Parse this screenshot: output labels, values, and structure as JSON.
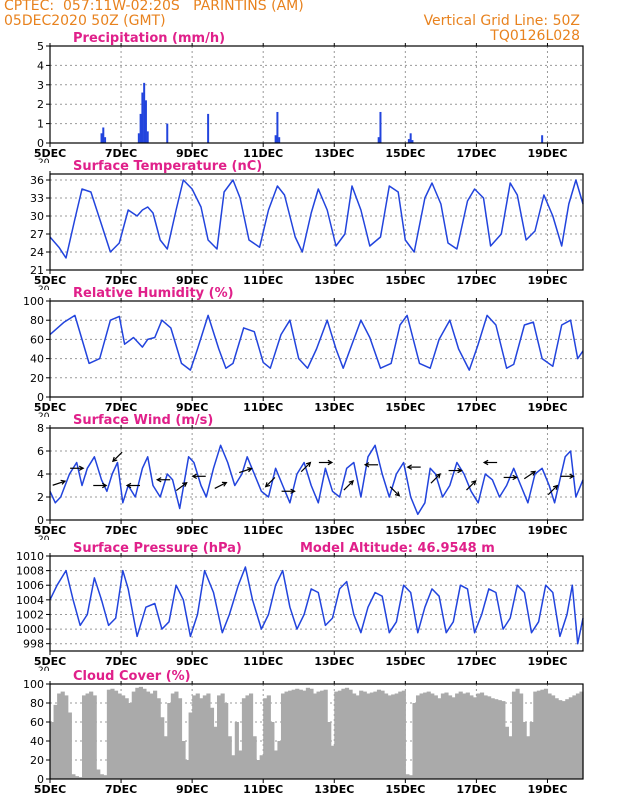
{
  "header": {
    "line1": "CPTEC:  057:11W-02:20S   PARINTINS (AM)",
    "line2": "05DEC2020 50Z (GMT)",
    "grid_note": "Vertical Grid Line: 50Z",
    "model_id": "TQ0126L028"
  },
  "colors": {
    "header": "#e8821e",
    "title": "#e0208a",
    "series": "#2244dd",
    "cloud": "#aaaaaa",
    "arrow": "#000000"
  },
  "chart_data": [
    {
      "id": "precip",
      "type": "bar",
      "title": "Precipitation (mm/h)",
      "ylim": [
        0,
        5
      ],
      "yticks": [
        0,
        1,
        2,
        3,
        4,
        5
      ],
      "xlim": [
        5,
        20
      ],
      "xticks": [
        5,
        7,
        9,
        11,
        13,
        15,
        17,
        19
      ],
      "xtick_labels": [
        "5DEC",
        "7DEC",
        "9DEC",
        "11DEC",
        "13DEC",
        "15DEC",
        "17DEC",
        "19DEC"
      ],
      "cut_label": "20",
      "grid": true,
      "x": [
        6.45,
        6.5,
        6.55,
        7.5,
        7.55,
        7.6,
        7.65,
        7.7,
        7.75,
        8.3,
        9.45,
        11.35,
        11.4,
        11.45,
        14.25,
        14.3,
        15.1,
        15.15,
        15.2,
        18.85
      ],
      "values": [
        0.5,
        0.8,
        0.3,
        0.5,
        1.5,
        2.6,
        3.1,
        2.2,
        0.6,
        1.0,
        1.5,
        0.4,
        1.6,
        0.3,
        0.3,
        1.6,
        0.2,
        0.5,
        0.15,
        0.4
      ]
    },
    {
      "id": "temp",
      "type": "line",
      "title": "Surface Temperature (nC)",
      "ylim": [
        21,
        37
      ],
      "yticks": [
        21,
        24,
        27,
        30,
        33,
        36
      ],
      "xlim": [
        5,
        20
      ],
      "xticks": [
        5,
        7,
        9,
        11,
        13,
        15,
        17,
        19
      ],
      "xtick_labels": [
        "5DEC",
        "7DEC",
        "9DEC",
        "11DEC",
        "13DEC",
        "15DEC",
        "17DEC",
        "19DEC"
      ],
      "cut_label": "20",
      "grid": true,
      "x": [
        5.0,
        5.25,
        5.45,
        5.7,
        5.9,
        6.15,
        6.4,
        6.7,
        6.95,
        7.2,
        7.45,
        7.6,
        7.75,
        7.9,
        8.1,
        8.3,
        8.55,
        8.75,
        9.0,
        9.25,
        9.45,
        9.7,
        9.9,
        10.15,
        10.35,
        10.6,
        10.9,
        11.15,
        11.4,
        11.6,
        11.9,
        12.1,
        12.35,
        12.55,
        12.8,
        13.05,
        13.3,
        13.5,
        13.75,
        14.0,
        14.3,
        14.55,
        14.8,
        15.0,
        15.25,
        15.55,
        15.75,
        16.0,
        16.2,
        16.45,
        16.75,
        16.95,
        17.2,
        17.4,
        17.7,
        17.95,
        18.15,
        18.4,
        18.65,
        18.9,
        19.15,
        19.4,
        19.6,
        19.8,
        20.0
      ],
      "values": [
        26.5,
        24.8,
        23.0,
        29.5,
        34.5,
        34.0,
        29.5,
        24.0,
        25.5,
        31.0,
        30.0,
        31.0,
        31.5,
        30.5,
        26.0,
        24.5,
        31.0,
        36.0,
        34.5,
        31.5,
        26.0,
        24.5,
        34.0,
        36.0,
        33.0,
        26.0,
        24.8,
        31.0,
        35.0,
        33.5,
        26.5,
        24.0,
        30.5,
        34.5,
        31.0,
        25.0,
        27.0,
        35.0,
        31.0,
        25.0,
        26.5,
        35.0,
        34.0,
        26.0,
        24.0,
        33.0,
        35.5,
        32.0,
        25.5,
        24.5,
        32.5,
        34.5,
        33.0,
        25.0,
        27.0,
        35.5,
        33.5,
        26.0,
        27.5,
        33.5,
        30.0,
        25.0,
        32.0,
        36.0,
        32.0
      ]
    },
    {
      "id": "rh",
      "type": "line",
      "title": "Relative Humidity (%)",
      "ylim": [
        0,
        100
      ],
      "yticks": [
        0,
        20,
        40,
        60,
        80,
        100
      ],
      "xlim": [
        5,
        20
      ],
      "xticks": [
        5,
        7,
        9,
        11,
        13,
        15,
        17,
        19
      ],
      "xtick_labels": [
        "5DEC",
        "7DEC",
        "9DEC",
        "11DEC",
        "13DEC",
        "15DEC",
        "17DEC",
        "19DEC"
      ],
      "cut_label": "20",
      "grid": true,
      "x": [
        5.0,
        5.4,
        5.7,
        5.9,
        6.1,
        6.4,
        6.7,
        6.95,
        7.1,
        7.35,
        7.6,
        7.75,
        7.95,
        8.15,
        8.4,
        8.7,
        8.95,
        9.15,
        9.45,
        9.75,
        9.95,
        10.15,
        10.45,
        10.75,
        11.0,
        11.2,
        11.5,
        11.75,
        12.0,
        12.25,
        12.5,
        12.8,
        13.05,
        13.25,
        13.5,
        13.75,
        14.0,
        14.3,
        14.6,
        14.85,
        15.05,
        15.4,
        15.7,
        15.95,
        16.25,
        16.5,
        16.8,
        17.05,
        17.3,
        17.55,
        17.85,
        18.05,
        18.35,
        18.6,
        18.85,
        19.15,
        19.4,
        19.65,
        19.85,
        20.0
      ],
      "values": [
        65.0,
        78.0,
        85.0,
        60.0,
        35.0,
        40.0,
        80.0,
        84.0,
        55.0,
        62.0,
        52.0,
        60.0,
        62.0,
        80.0,
        72.0,
        35.0,
        28.0,
        50.0,
        85.0,
        50.0,
        30.0,
        35.0,
        72.0,
        68.0,
        36.0,
        30.0,
        65.0,
        80.0,
        40.0,
        30.0,
        50.0,
        80.0,
        50.0,
        30.0,
        55.0,
        80.0,
        62.0,
        30.0,
        35.0,
        75.0,
        85.0,
        35.0,
        30.0,
        60.0,
        80.0,
        50.0,
        28.0,
        55.0,
        85.0,
        75.0,
        30.0,
        34.0,
        75.0,
        78.0,
        40.0,
        32.0,
        75.0,
        80.0,
        40.0,
        48.0
      ]
    },
    {
      "id": "wind",
      "type": "line",
      "title": "Surface Wind (m/s)",
      "ylim": [
        0,
        8
      ],
      "yticks": [
        0,
        2,
        4,
        6,
        8
      ],
      "xlim": [
        5,
        20
      ],
      "xticks": [
        5,
        7,
        9,
        11,
        13,
        15,
        17,
        19
      ],
      "xtick_labels": [
        "5DEC",
        "7DEC",
        "9DEC",
        "11DEC",
        "13DEC",
        "15DEC",
        "17DEC",
        "19DEC"
      ],
      "cut_label": "20",
      "grid": true,
      "x": [
        5.0,
        5.15,
        5.3,
        5.55,
        5.75,
        5.9,
        6.05,
        6.25,
        6.45,
        6.6,
        6.75,
        6.9,
        7.05,
        7.2,
        7.4,
        7.6,
        7.75,
        7.9,
        8.1,
        8.3,
        8.45,
        8.65,
        8.9,
        9.05,
        9.25,
        9.4,
        9.6,
        9.8,
        10.0,
        10.2,
        10.4,
        10.55,
        10.75,
        10.95,
        11.15,
        11.35,
        11.55,
        11.75,
        11.95,
        12.15,
        12.35,
        12.55,
        12.75,
        12.95,
        13.15,
        13.35,
        13.55,
        13.75,
        13.95,
        14.15,
        14.35,
        14.55,
        14.75,
        14.95,
        15.15,
        15.35,
        15.55,
        15.7,
        15.85,
        16.05,
        16.25,
        16.45,
        16.65,
        16.85,
        17.05,
        17.25,
        17.45,
        17.65,
        17.85,
        18.05,
        18.25,
        18.45,
        18.65,
        18.85,
        19.05,
        19.2,
        19.35,
        19.5,
        19.65,
        19.8,
        20.0
      ],
      "values": [
        2.5,
        1.5,
        2.0,
        4.0,
        5.0,
        3.0,
        4.5,
        5.5,
        3.5,
        2.5,
        4.0,
        5.0,
        1.5,
        3.0,
        2.0,
        4.5,
        5.5,
        3.0,
        2.0,
        4.0,
        3.5,
        1.0,
        5.5,
        5.0,
        3.0,
        2.0,
        4.5,
        6.5,
        5.0,
        3.0,
        4.0,
        5.5,
        4.0,
        2.5,
        2.0,
        4.5,
        3.0,
        1.5,
        4.0,
        5.0,
        3.0,
        1.5,
        4.5,
        2.5,
        2.0,
        4.5,
        5.0,
        2.0,
        5.5,
        6.5,
        4.0,
        2.0,
        4.0,
        5.0,
        2.0,
        0.5,
        1.5,
        4.5,
        4.0,
        2.0,
        3.0,
        5.0,
        4.0,
        2.5,
        1.5,
        4.0,
        3.5,
        2.0,
        3.0,
        4.5,
        3.0,
        1.5,
        4.0,
        4.5,
        3.0,
        1.5,
        3.5,
        5.5,
        6.0,
        2.0,
        3.5
      ],
      "arrows": {
        "x": [
          5.25,
          5.75,
          6.4,
          6.9,
          7.35,
          8.2,
          8.7,
          9.2,
          9.8,
          10.5,
          11.2,
          11.7,
          12.2,
          12.75,
          13.4,
          14.05,
          14.7,
          15.25,
          15.85,
          16.4,
          16.85,
          17.4,
          17.95,
          18.5,
          19.15,
          19.55
        ],
        "y": [
          3.2,
          4.5,
          3.0,
          5.5,
          3.0,
          3.5,
          2.9,
          3.8,
          3.0,
          4.3,
          3.3,
          2.5,
          4.6,
          5.0,
          3.0,
          4.8,
          2.5,
          4.6,
          3.6,
          4.3,
          3.0,
          5.0,
          3.7,
          3.9,
          2.6,
          3.8
        ],
        "u": [
          3,
          3,
          3,
          -3,
          -3,
          -3,
          4,
          -3,
          2,
          3,
          -3,
          3,
          3,
          3,
          3,
          -3,
          3,
          -3,
          2,
          2,
          3,
          -3,
          3,
          3,
          2,
          3
        ],
        "v": [
          1,
          0,
          0,
          -3,
          0,
          0,
          3,
          0,
          1,
          1,
          -3,
          0,
          3,
          0,
          3,
          0,
          -3,
          0,
          2,
          0,
          3,
          0,
          0,
          2,
          2,
          0
        ]
      }
    },
    {
      "id": "pressure",
      "type": "line",
      "title": "Surface Pressure (hPa)",
      "subtitle": "Model Altitude: 46.9548  m",
      "ylim": [
        997,
        1010
      ],
      "yticks": [
        998,
        1000,
        1002,
        1004,
        1006,
        1008,
        1010
      ],
      "xlim": [
        5,
        20
      ],
      "xticks": [
        5,
        7,
        9,
        11,
        13,
        15,
        17,
        19
      ],
      "xtick_labels": [
        "5DEC",
        "7DEC",
        "9DEC",
        "11DEC",
        "13DEC",
        "15DEC",
        "17DEC",
        "19DEC"
      ],
      "cut_label": "20",
      "grid": true,
      "x": [
        5.0,
        5.2,
        5.45,
        5.65,
        5.85,
        6.05,
        6.25,
        6.45,
        6.65,
        6.85,
        7.05,
        7.2,
        7.45,
        7.7,
        7.95,
        8.15,
        8.35,
        8.55,
        8.75,
        8.95,
        9.15,
        9.35,
        9.6,
        9.85,
        10.05,
        10.3,
        10.5,
        10.7,
        10.95,
        11.15,
        11.35,
        11.55,
        11.75,
        11.95,
        12.15,
        12.35,
        12.55,
        12.75,
        12.95,
        13.15,
        13.35,
        13.55,
        13.75,
        13.95,
        14.15,
        14.35,
        14.55,
        14.75,
        14.95,
        15.15,
        15.35,
        15.55,
        15.75,
        15.95,
        16.15,
        16.35,
        16.55,
        16.75,
        16.95,
        17.15,
        17.35,
        17.55,
        17.75,
        17.95,
        18.15,
        18.35,
        18.55,
        18.75,
        18.95,
        19.15,
        19.35,
        19.55,
        19.7,
        19.85,
        20.0
      ],
      "values": [
        1004.0,
        1006.0,
        1008.0,
        1004.0,
        1000.5,
        1002.0,
        1007.0,
        1004.0,
        1000.5,
        1001.5,
        1008.0,
        1005.5,
        999.0,
        1003.0,
        1003.5,
        1000.0,
        1001.0,
        1006.0,
        1004.0,
        999.0,
        1002.0,
        1008.0,
        1005.0,
        999.5,
        1002.0,
        1006.0,
        1008.5,
        1004.0,
        1000.0,
        1002.0,
        1006.0,
        1008.0,
        1003.0,
        1000.0,
        1002.0,
        1005.5,
        1005.0,
        1000.5,
        1001.5,
        1005.5,
        1006.5,
        1002.0,
        999.5,
        1003.0,
        1005.0,
        1004.5,
        999.5,
        1001.0,
        1006.0,
        1005.0,
        999.5,
        1003.0,
        1005.5,
        1004.5,
        999.5,
        1001.0,
        1006.0,
        1005.5,
        999.5,
        1002.0,
        1005.5,
        1005.0,
        1000.0,
        1001.5,
        1006.0,
        1005.0,
        999.5,
        1001.0,
        1006.0,
        1005.0,
        999.0,
        1002.0,
        1006.0,
        998.0,
        1001.5
      ]
    },
    {
      "id": "cloud",
      "type": "bar",
      "title": "Cloud Cover (%)",
      "ylim": [
        0,
        100
      ],
      "yticks": [
        0,
        20,
        40,
        60,
        80,
        100
      ],
      "xlim": [
        5,
        20
      ],
      "xticks": [
        5,
        7,
        9,
        11,
        13,
        15,
        17,
        19
      ],
      "xtick_labels": [
        "5DEC",
        "7DEC",
        "9DEC",
        "11DEC",
        "13DEC",
        "15DEC",
        "17DEC",
        "19DEC"
      ],
      "grid": true,
      "x": [
        5.0,
        5.1,
        5.2,
        5.3,
        5.4,
        5.5,
        5.6,
        5.7,
        5.8,
        5.9,
        6.0,
        6.1,
        6.2,
        6.3,
        6.4,
        6.5,
        6.6,
        6.7,
        6.8,
        6.9,
        7.0,
        7.1,
        7.2,
        7.3,
        7.4,
        7.5,
        7.6,
        7.7,
        7.8,
        7.9,
        8.0,
        8.1,
        8.2,
        8.3,
        8.4,
        8.5,
        8.6,
        8.7,
        8.8,
        8.9,
        9.0,
        9.1,
        9.2,
        9.3,
        9.4,
        9.5,
        9.6,
        9.7,
        9.8,
        9.9,
        10.0,
        10.1,
        10.2,
        10.3,
        10.4,
        10.5,
        10.6,
        10.7,
        10.8,
        10.9,
        11.0,
        11.1,
        11.2,
        11.3,
        11.4,
        11.5,
        11.6,
        11.7,
        11.8,
        11.9,
        12.0,
        12.1,
        12.2,
        12.3,
        12.4,
        12.5,
        12.6,
        12.7,
        12.8,
        12.9,
        13.0,
        13.1,
        13.2,
        13.3,
        13.4,
        13.5,
        13.6,
        13.7,
        13.8,
        13.9,
        14.0,
        14.1,
        14.2,
        14.3,
        14.4,
        14.5,
        14.6,
        14.7,
        14.8,
        14.9,
        15.0,
        15.1,
        15.2,
        15.3,
        15.4,
        15.5,
        15.6,
        15.7,
        15.8,
        15.9,
        16.0,
        16.1,
        16.2,
        16.3,
        16.4,
        16.5,
        16.6,
        16.7,
        16.8,
        16.9,
        17.0,
        17.1,
        17.2,
        17.3,
        17.4,
        17.5,
        17.6,
        17.7,
        17.8,
        17.9,
        18.0,
        18.1,
        18.2,
        18.3,
        18.4,
        18.5,
        18.6,
        18.7,
        18.8,
        18.9,
        19.0,
        19.1,
        19.2,
        19.3,
        19.4,
        19.5,
        19.6,
        19.7,
        19.8,
        19.9
      ],
      "values": [
        60,
        78,
        90,
        92,
        88,
        70,
        5,
        3,
        2,
        88,
        90,
        92,
        88,
        10,
        5,
        4,
        94,
        95,
        93,
        90,
        88,
        85,
        80,
        92,
        96,
        97,
        95,
        92,
        90,
        93,
        85,
        65,
        45,
        80,
        90,
        92,
        85,
        40,
        20,
        70,
        88,
        90,
        85,
        88,
        90,
        75,
        55,
        88,
        90,
        80,
        45,
        25,
        60,
        30,
        85,
        88,
        90,
        45,
        20,
        25,
        85,
        88,
        60,
        30,
        40,
        90,
        92,
        93,
        94,
        95,
        94,
        93,
        96,
        95,
        90,
        92,
        93,
        94,
        60,
        35,
        92,
        93,
        95,
        96,
        94,
        90,
        88,
        93,
        92,
        90,
        91,
        92,
        94,
        93,
        90,
        88,
        89,
        90,
        92,
        93,
        5,
        4,
        80,
        88,
        90,
        91,
        92,
        90,
        88,
        85,
        90,
        91,
        88,
        86,
        90,
        92,
        90,
        91,
        88,
        86,
        90,
        91,
        88,
        87,
        85,
        84,
        83,
        82,
        55,
        45,
        92,
        95,
        90,
        60,
        45,
        60,
        92,
        93,
        94,
        95,
        90,
        88,
        85,
        83,
        82,
        84,
        86,
        88,
        90,
        92
      ]
    }
  ]
}
